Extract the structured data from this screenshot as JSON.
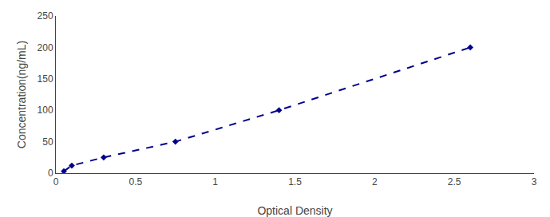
{
  "chart_data": {
    "type": "line",
    "x": [
      0.05,
      0.1,
      0.3,
      0.75,
      1.4,
      2.6
    ],
    "values": [
      3,
      12,
      25,
      50,
      100,
      200
    ],
    "color": "#00008B",
    "marker": "diamond",
    "line_style": "dashed",
    "xlabel": "Optical Density",
    "ylabel": "Concentration(ng/mL)",
    "xlim": [
      0,
      3
    ],
    "ylim": [
      0,
      250
    ],
    "xticks": [
      0,
      0.5,
      1,
      1.5,
      2,
      2.5,
      3
    ],
    "yticks": [
      0,
      50,
      100,
      150,
      200,
      250
    ],
    "grid": false
  }
}
